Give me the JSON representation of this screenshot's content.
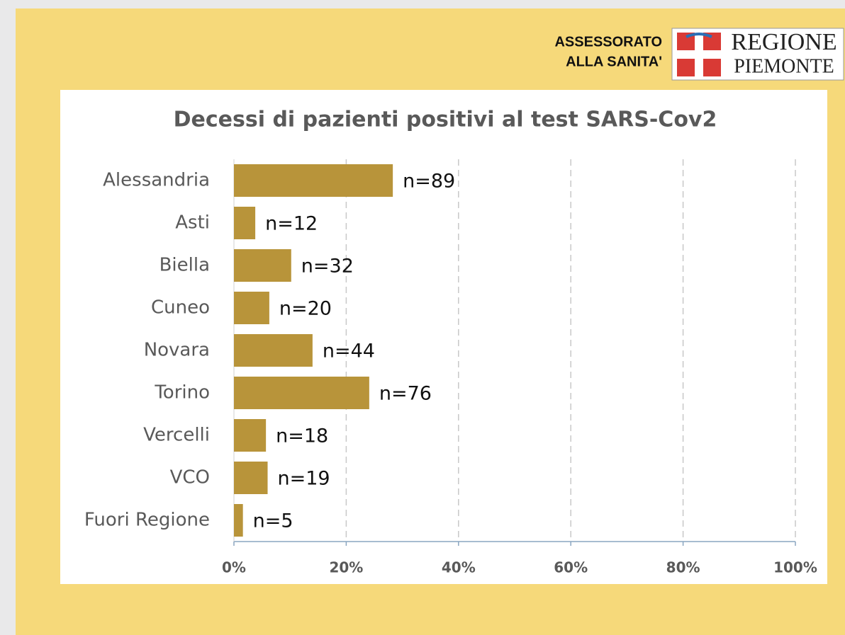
{
  "header": {
    "department": [
      "ASSESSORATO",
      "ALLA SANITA'"
    ],
    "logo": [
      "REGIONE",
      "PIEMONTE"
    ]
  },
  "chart_data": {
    "type": "bar",
    "orientation": "horizontal",
    "title": "Decessi di pazienti positivi al test SARS-Cov2",
    "categories": [
      "Alessandria",
      "Asti",
      "Biella",
      "Cuneo",
      "Novara",
      "Torino",
      "Vercelli",
      "VCO",
      "Fuori Regione"
    ],
    "values": [
      28.3,
      3.8,
      10.2,
      6.3,
      14.0,
      24.1,
      5.7,
      6.0,
      1.6
    ],
    "annotations": [
      "n=89",
      "n=12",
      "n=32",
      "n=20",
      "n=44",
      "n=76",
      "n=18",
      "n=19",
      "n=5"
    ],
    "color": "#b8943a",
    "xlim": [
      0,
      100
    ],
    "xticks": [
      {
        "value": 0,
        "label": "0%"
      },
      {
        "value": 20,
        "label": "20%"
      },
      {
        "value": 40,
        "label": "40%"
      },
      {
        "value": 60,
        "label": "60%"
      },
      {
        "value": 80,
        "label": "80%"
      },
      {
        "value": 100,
        "label": "100%"
      }
    ],
    "grid": true
  }
}
